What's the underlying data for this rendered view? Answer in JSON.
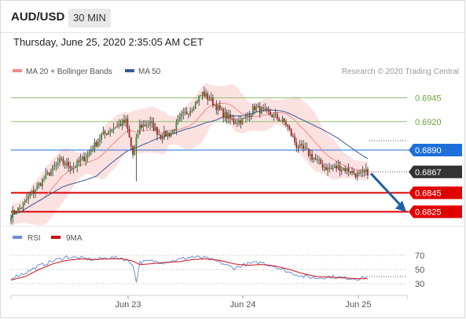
{
  "header": {
    "pair": "AUD/USD",
    "timeframe": "30 MIN",
    "date": "Thursday, June 25, 2020 2:35:05 AM CET"
  },
  "legend": {
    "ma20": "MA 20 + Bollinger Bands",
    "ma50": "MA 50",
    "credit": "Research © 2020 Trading Central"
  },
  "rsi_legend": {
    "rsi": "RSI",
    "ma": "9MA"
  },
  "colors": {
    "ma20": "#f08a8a",
    "band": "#fcdcdc",
    "ma50": "#3a5a9a",
    "green": "#8dc46a",
    "blue": "#1e6fd9",
    "red": "#e00000",
    "dark": "#333333",
    "rsi": "#6f8fd8",
    "rsi_ma": "#cc1010"
  },
  "chart_data": [
    {
      "type": "candlestick",
      "title": "AUD/USD",
      "ylim": [
        0.6818,
        0.6962
      ],
      "x_ticks": [
        "Jun 23",
        "Jun 24",
        "Jun 25"
      ],
      "levels": [
        {
          "label": "0.6945",
          "value": 0.6945,
          "style": "green"
        },
        {
          "label": "0.6920",
          "value": 0.692,
          "style": "green"
        },
        {
          "label": "0.6890",
          "value": 0.689,
          "style": "blue"
        },
        {
          "label": "0.6867",
          "value": 0.6867,
          "style": "dark"
        },
        {
          "label": "0.6845",
          "value": 0.6845,
          "style": "red"
        },
        {
          "label": "0.6825",
          "value": 0.6825,
          "style": "red"
        }
      ],
      "close_anchors": [
        [
          0,
          0.6822
        ],
        [
          6,
          0.683
        ],
        [
          12,
          0.6845
        ],
        [
          20,
          0.6862
        ],
        [
          28,
          0.6878
        ],
        [
          36,
          0.6872
        ],
        [
          44,
          0.6885
        ],
        [
          52,
          0.6905
        ],
        [
          60,
          0.6915
        ],
        [
          66,
          0.692
        ],
        [
          70,
          0.6885
        ],
        [
          74,
          0.6915
        ],
        [
          80,
          0.6918
        ],
        [
          86,
          0.6905
        ],
        [
          92,
          0.6908
        ],
        [
          98,
          0.6925
        ],
        [
          104,
          0.6935
        ],
        [
          110,
          0.695
        ],
        [
          116,
          0.694
        ],
        [
          122,
          0.6928
        ],
        [
          128,
          0.692
        ],
        [
          134,
          0.6922
        ],
        [
          140,
          0.6935
        ],
        [
          146,
          0.693
        ],
        [
          152,
          0.6925
        ],
        [
          158,
          0.6918
        ],
        [
          164,
          0.6895
        ],
        [
          170,
          0.6888
        ],
        [
          176,
          0.6878
        ],
        [
          182,
          0.687
        ],
        [
          188,
          0.6872
        ],
        [
          194,
          0.6869
        ],
        [
          200,
          0.6863
        ],
        [
          205,
          0.6867
        ]
      ],
      "spikes": [
        {
          "i": 72,
          "low": 0.6857
        }
      ],
      "target": {
        "from": 0.6867,
        "to": 0.6825
      }
    },
    {
      "type": "line",
      "title": "RSI",
      "ylim": [
        20,
        80
      ],
      "y_ticks": [
        "70",
        "50",
        "30"
      ],
      "series": [
        {
          "name": "RSI",
          "anchors": [
            [
              0,
              38
            ],
            [
              8,
              45
            ],
            [
              16,
              55
            ],
            [
              24,
              62
            ],
            [
              32,
              68
            ],
            [
              40,
              66
            ],
            [
              48,
              64
            ],
            [
              56,
              67
            ],
            [
              64,
              66
            ],
            [
              70,
              58
            ],
            [
              72,
              32
            ],
            [
              74,
              60
            ],
            [
              80,
              62
            ],
            [
              88,
              60
            ],
            [
              96,
              64
            ],
            [
              104,
              68
            ],
            [
              112,
              66
            ],
            [
              120,
              60
            ],
            [
              128,
              52
            ],
            [
              136,
              58
            ],
            [
              144,
              60
            ],
            [
              152,
              54
            ],
            [
              160,
              46
            ],
            [
              168,
              40
            ],
            [
              176,
              38
            ],
            [
              184,
              40
            ],
            [
              192,
              38
            ],
            [
              200,
              37
            ],
            [
              205,
              40
            ]
          ]
        },
        {
          "name": "9MA",
          "anchors": [
            [
              0,
              35
            ],
            [
              8,
              40
            ],
            [
              16,
              50
            ],
            [
              24,
              58
            ],
            [
              32,
              63
            ],
            [
              40,
              65
            ],
            [
              48,
              64
            ],
            [
              56,
              65
            ],
            [
              64,
              65
            ],
            [
              70,
              62
            ],
            [
              74,
              57
            ],
            [
              80,
              58
            ],
            [
              88,
              60
            ],
            [
              96,
              61
            ],
            [
              104,
              64
            ],
            [
              112,
              65
            ],
            [
              120,
              63
            ],
            [
              128,
              58
            ],
            [
              136,
              56
            ],
            [
              144,
              57
            ],
            [
              152,
              55
            ],
            [
              160,
              50
            ],
            [
              168,
              44
            ],
            [
              176,
              40
            ],
            [
              184,
              39
            ],
            [
              192,
              38
            ],
            [
              200,
              37
            ],
            [
              205,
              37
            ]
          ]
        }
      ]
    }
  ]
}
